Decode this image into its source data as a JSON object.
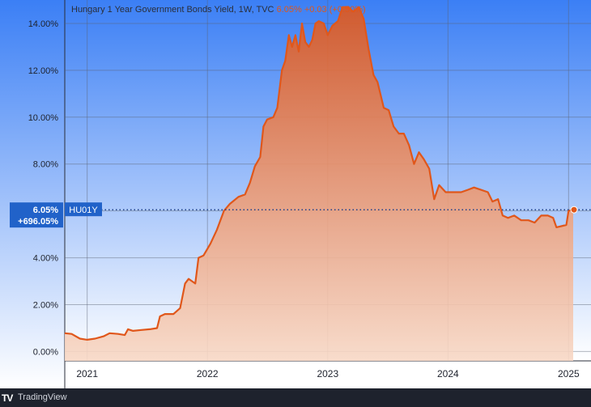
{
  "title": {
    "name": "Hungary 1 Year Government Bonds Yield, 1W, TVC",
    "last": "6.05%",
    "change": "+0.03 (+0.50%)"
  },
  "badges": {
    "price": "6.05%",
    "change": "+696.05%",
    "symbol": "HU01Y"
  },
  "footer": {
    "logo": "TV",
    "brand": "TradingView"
  },
  "colors": {
    "line": "#e0571b",
    "fill_top": "#e0571b",
    "fill_bottom": "#f7d8c6",
    "bg_top": "#3b7ff5",
    "bg_bottom": "#ffffff",
    "badge": "#2162c9"
  },
  "chart_data": {
    "type": "area",
    "title": "Hungary 1 Year Government Bonds Yield, 1W, TVC",
    "xlabel": "",
    "ylabel": "",
    "x_ticks": [
      "2021",
      "2022",
      "2023",
      "2024",
      "2025"
    ],
    "y_ticks": [
      "0.00%",
      "2.00%",
      "4.00%",
      "6.00%",
      "8.00%",
      "10.00%",
      "12.00%",
      "14.00%"
    ],
    "ylim": [
      -0.4,
      15.0
    ],
    "xlim": [
      "2020-10-25",
      "2025-03-10"
    ],
    "grid": true,
    "last_value": 6.05,
    "series": [
      {
        "values": [
          [
            "2020-10-25",
            0.78
          ],
          [
            "2020-11-15",
            0.75
          ],
          [
            "2020-12-10",
            0.55
          ],
          [
            "2021-01-01",
            0.5
          ],
          [
            "2021-01-25",
            0.55
          ],
          [
            "2021-02-20",
            0.65
          ],
          [
            "2021-03-10",
            0.78
          ],
          [
            "2021-04-05",
            0.75
          ],
          [
            "2021-04-25",
            0.7
          ],
          [
            "2021-05-05",
            0.95
          ],
          [
            "2021-05-20",
            0.88
          ],
          [
            "2021-06-15",
            0.92
          ],
          [
            "2021-07-10",
            0.95
          ],
          [
            "2021-08-01",
            1.0
          ],
          [
            "2021-08-10",
            1.5
          ],
          [
            "2021-08-25",
            1.6
          ],
          [
            "2021-09-20",
            1.6
          ],
          [
            "2021-10-10",
            1.85
          ],
          [
            "2021-10-25",
            2.9
          ],
          [
            "2021-11-05",
            3.1
          ],
          [
            "2021-11-25",
            2.9
          ],
          [
            "2021-12-05",
            4.0
          ],
          [
            "2021-12-20",
            4.1
          ],
          [
            "2022-01-10",
            4.6
          ],
          [
            "2022-01-30",
            5.2
          ],
          [
            "2022-02-20",
            6.0
          ],
          [
            "2022-03-10",
            6.3
          ],
          [
            "2022-04-05",
            6.6
          ],
          [
            "2022-04-25",
            6.7
          ],
          [
            "2022-05-10",
            7.2
          ],
          [
            "2022-05-25",
            7.9
          ],
          [
            "2022-06-10",
            8.3
          ],
          [
            "2022-06-20",
            9.6
          ],
          [
            "2022-07-01",
            9.9
          ],
          [
            "2022-07-20",
            10.0
          ],
          [
            "2022-08-01",
            10.4
          ],
          [
            "2022-08-15",
            12.0
          ],
          [
            "2022-08-25",
            12.4
          ],
          [
            "2022-09-05",
            13.5
          ],
          [
            "2022-09-15",
            13.0
          ],
          [
            "2022-09-25",
            13.5
          ],
          [
            "2022-10-05",
            12.8
          ],
          [
            "2022-10-15",
            14.0
          ],
          [
            "2022-10-25",
            13.2
          ],
          [
            "2022-11-05",
            13.0
          ],
          [
            "2022-11-15",
            13.3
          ],
          [
            "2022-11-25",
            14.0
          ],
          [
            "2022-12-05",
            14.1
          ],
          [
            "2022-12-20",
            14.0
          ],
          [
            "2023-01-01",
            13.5
          ],
          [
            "2023-01-15",
            13.9
          ],
          [
            "2023-02-01",
            14.1
          ],
          [
            "2023-02-15",
            14.7
          ],
          [
            "2023-03-05",
            14.7
          ],
          [
            "2023-03-20",
            14.5
          ],
          [
            "2023-04-05",
            14.7
          ],
          [
            "2023-04-20",
            14.2
          ],
          [
            "2023-05-05",
            12.9
          ],
          [
            "2023-05-20",
            11.8
          ],
          [
            "2023-06-01",
            11.5
          ],
          [
            "2023-06-20",
            10.4
          ],
          [
            "2023-07-05",
            10.3
          ],
          [
            "2023-07-20",
            9.6
          ],
          [
            "2023-08-05",
            9.3
          ],
          [
            "2023-08-20",
            9.3
          ],
          [
            "2023-09-05",
            8.8
          ],
          [
            "2023-09-20",
            8.0
          ],
          [
            "2023-10-05",
            8.5
          ],
          [
            "2023-10-20",
            8.2
          ],
          [
            "2023-11-05",
            7.8
          ],
          [
            "2023-11-20",
            6.5
          ],
          [
            "2023-12-05",
            7.1
          ],
          [
            "2023-12-25",
            6.8
          ],
          [
            "2024-01-15",
            6.8
          ],
          [
            "2024-02-10",
            6.8
          ],
          [
            "2024-03-01",
            6.9
          ],
          [
            "2024-03-20",
            7.0
          ],
          [
            "2024-04-10",
            6.9
          ],
          [
            "2024-05-01",
            6.8
          ],
          [
            "2024-05-15",
            6.4
          ],
          [
            "2024-06-01",
            6.5
          ],
          [
            "2024-06-15",
            5.8
          ],
          [
            "2024-07-01",
            5.7
          ],
          [
            "2024-07-20",
            5.8
          ],
          [
            "2024-08-10",
            5.6
          ],
          [
            "2024-09-01",
            5.6
          ],
          [
            "2024-09-20",
            5.5
          ],
          [
            "2024-10-10",
            5.8
          ],
          [
            "2024-10-30",
            5.8
          ],
          [
            "2024-11-15",
            5.7
          ],
          [
            "2024-11-25",
            5.3
          ],
          [
            "2024-12-10",
            5.35
          ],
          [
            "2024-12-25",
            5.4
          ],
          [
            "2025-01-01",
            6.0
          ],
          [
            "2025-01-15",
            6.05
          ]
        ]
      }
    ]
  }
}
